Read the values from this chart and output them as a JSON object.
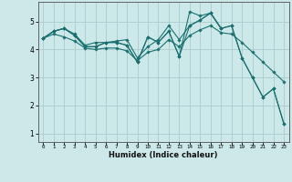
{
  "bg_color": "#cce8e8",
  "grid_color": "#aacccc",
  "line_color": "#1a7070",
  "xlabel": "Humidex (Indice chaleur)",
  "xlim": [
    -0.5,
    23.5
  ],
  "ylim": [
    0.7,
    5.7
  ],
  "xticks": [
    0,
    1,
    2,
    3,
    4,
    5,
    6,
    7,
    8,
    9,
    10,
    11,
    12,
    13,
    14,
    15,
    16,
    17,
    18,
    19,
    20,
    21,
    22,
    23
  ],
  "yticks": [
    1,
    2,
    3,
    4,
    5
  ],
  "series": [
    [
      4.4,
      4.65,
      4.75,
      4.5,
      4.1,
      4.1,
      4.25,
      4.25,
      4.15,
      3.55,
      4.45,
      4.25,
      4.65,
      3.75,
      5.35,
      5.2,
      5.3,
      4.75,
      4.85,
      3.7,
      3.0,
      2.3,
      2.6,
      1.35
    ],
    [
      4.4,
      4.65,
      4.75,
      4.5,
      4.1,
      4.1,
      4.25,
      4.25,
      4.15,
      3.55,
      4.45,
      4.25,
      4.65,
      3.75,
      4.85,
      5.05,
      5.3,
      4.75,
      4.85,
      3.7,
      3.0,
      2.3,
      2.6,
      1.35
    ],
    [
      4.4,
      4.65,
      4.75,
      4.55,
      4.15,
      4.25,
      4.25,
      4.3,
      4.35,
      3.7,
      4.1,
      4.35,
      4.85,
      4.35,
      4.85,
      5.05,
      5.3,
      4.75,
      null,
      null,
      null,
      null,
      null,
      null
    ],
    [
      4.4,
      4.55,
      4.45,
      4.3,
      4.05,
      4.0,
      4.05,
      4.05,
      3.95,
      3.6,
      3.9,
      4.0,
      4.35,
      4.1,
      4.5,
      4.7,
      4.85,
      4.6,
      4.55,
      4.25,
      3.9,
      3.55,
      3.2,
      2.85
    ]
  ]
}
